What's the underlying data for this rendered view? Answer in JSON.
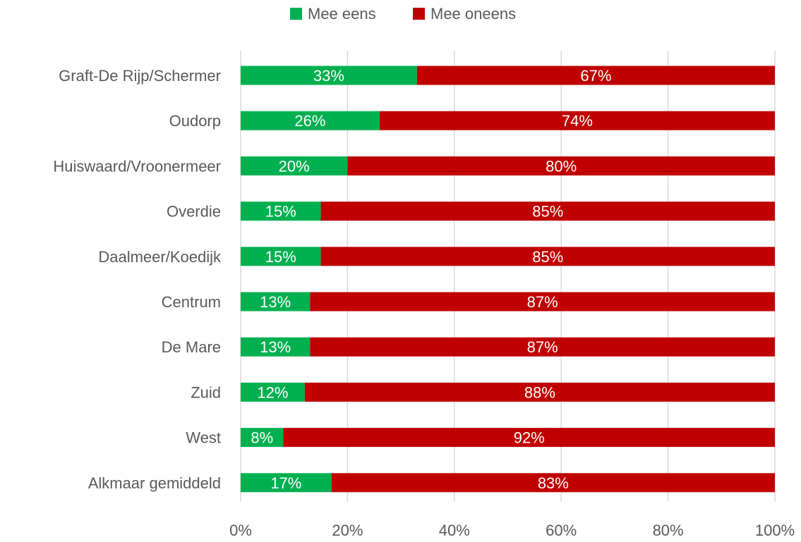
{
  "chart_data": {
    "type": "bar",
    "orientation": "horizontal",
    "stacked": true,
    "categories": [
      "Graft-De Rijp/Schermer",
      "Oudorp",
      "Huiswaard/Vroonermeer",
      "Overdie",
      "Daalmeer/Koedijk",
      "Centrum",
      "De Mare",
      "Zuid",
      "West",
      "Alkmaar gemiddeld"
    ],
    "series": [
      {
        "name": "Mee eens",
        "color": "#00b050",
        "values": [
          33,
          26,
          20,
          15,
          15,
          13,
          13,
          12,
          8,
          17
        ],
        "labels": [
          "33%",
          "26%",
          "20%",
          "15%",
          "15%",
          "13%",
          "13%",
          "12%",
          "8%",
          "17%"
        ]
      },
      {
        "name": "Mee oneens",
        "color": "#c00000",
        "values": [
          67,
          74,
          80,
          85,
          85,
          87,
          87,
          88,
          92,
          83
        ],
        "labels": [
          "67%",
          "74%",
          "80%",
          "85%",
          "85%",
          "87%",
          "87%",
          "88%",
          "92%",
          "83%"
        ]
      }
    ],
    "xlim": [
      0,
      100
    ],
    "xticks": [
      0,
      20,
      40,
      60,
      80,
      100
    ],
    "xtick_labels": [
      "0%",
      "20%",
      "40%",
      "60%",
      "80%",
      "100%"
    ],
    "grid": true,
    "legend": "top-center"
  }
}
